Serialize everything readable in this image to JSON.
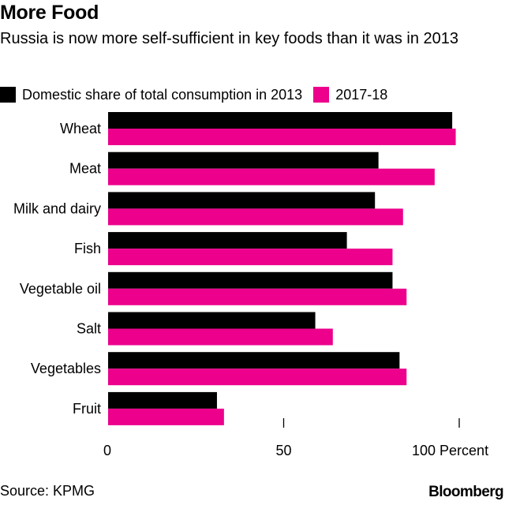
{
  "header": {
    "title": "More Food",
    "subtitle": "Russia is now more self-sufficient in key foods than it was in 2013"
  },
  "legend": {
    "items": [
      {
        "label": "Domestic share of total consumption in 2013",
        "color": "#000000"
      },
      {
        "label": "2017-18",
        "color": "#ec008c"
      }
    ]
  },
  "chart_data": {
    "type": "bar",
    "orientation": "horizontal",
    "categories": [
      "Wheat",
      "Meat",
      "Milk and dairy",
      "Fish",
      "Vegetable oil",
      "Salt",
      "Vegetables",
      "Fruit"
    ],
    "series": [
      {
        "name": "Domestic share of total consumption in 2013",
        "color": "#000000",
        "values": [
          98,
          77,
          76,
          68,
          81,
          59,
          83,
          31
        ]
      },
      {
        "name": "2017-18",
        "color": "#ec008c",
        "values": [
          99,
          93,
          84,
          81,
          85,
          64,
          85,
          33
        ]
      }
    ],
    "xlim": [
      0,
      100
    ],
    "xticks": [
      0,
      50,
      100
    ],
    "xtick_labels": [
      "0",
      "50",
      "100 Percent"
    ],
    "grid": false,
    "legend_position": "top-left"
  },
  "footer": {
    "source": "Source: KPMG",
    "brand": "Bloomberg"
  }
}
